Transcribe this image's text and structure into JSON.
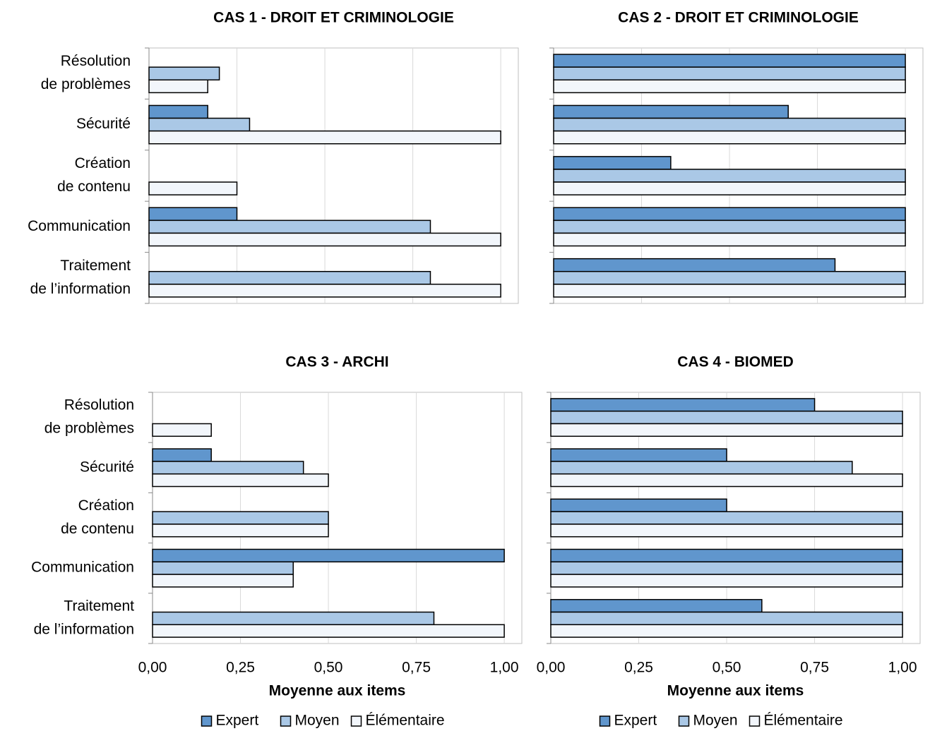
{
  "chart_data": [
    {
      "type": "bar",
      "orientation": "horizontal",
      "title": "CAS 1 - DROIT ET CRIMINOLOGIE",
      "categories": [
        [
          "Résolution",
          "de problèmes"
        ],
        [
          "Sécurité"
        ],
        [
          "Création",
          "de contenu"
        ],
        [
          "Communication"
        ],
        [
          "Traitement",
          "de l’information"
        ]
      ],
      "series": [
        {
          "color": "#6096cd",
          "values": [
            0,
            0.167,
            0,
            0.25,
            0
          ]
        },
        {
          "color": "#aac8e6",
          "values": [
            0.2,
            0.286,
            0,
            0.8,
            0.8
          ]
        },
        {
          "color": "#f2f6fb",
          "values": [
            0.167,
            1,
            0.25,
            1,
            1
          ]
        }
      ],
      "xlim": [
        0,
        1.05
      ],
      "xticks": [
        0,
        0.25,
        0.5,
        0.75,
        1
      ],
      "grid": true
    },
    {
      "type": "bar",
      "orientation": "horizontal",
      "title": "CAS 2 - DROIT ET CRIMINOLOGIE",
      "categories": [
        [],
        [],
        [],
        [],
        []
      ],
      "series": [
        {
          "color": "#6096cd",
          "values": [
            1,
            0.667,
            0.333,
            1,
            0.8
          ]
        },
        {
          "color": "#aac8e6",
          "values": [
            1,
            1,
            1,
            1,
            1
          ]
        },
        {
          "color": "#f2f6fb",
          "values": [
            1,
            1,
            1,
            1,
            1
          ]
        }
      ],
      "xlim": [
        0,
        1.05
      ],
      "xticks": [
        0,
        0.25,
        0.5,
        0.75,
        1
      ],
      "grid": true
    },
    {
      "type": "bar",
      "orientation": "horizontal",
      "title": "CAS 3 - ARCHI",
      "categories": [
        [
          "Résolution",
          "de problèmes"
        ],
        [
          "Sécurité"
        ],
        [
          "Création",
          "de contenu"
        ],
        [
          "Communication"
        ],
        [
          "Traitement",
          "de l’information"
        ]
      ],
      "series": [
        {
          "name": "Expert",
          "color": "#6096cd",
          "values": [
            0,
            0.167,
            0,
            1,
            0
          ]
        },
        {
          "name": "Moyen",
          "color": "#aac8e6",
          "values": [
            0,
            0.429,
            0.5,
            0.4,
            0.8
          ]
        },
        {
          "name": "Élémentaire",
          "color": "#f2f6fb",
          "values": [
            0.167,
            0.5,
            0.5,
            0.4,
            1
          ]
        }
      ],
      "xlim": [
        0,
        1.05
      ],
      "xticks": [
        {
          "value": 0,
          "label": "0,00"
        },
        {
          "value": 0.25,
          "label": "0,25"
        },
        {
          "value": 0.5,
          "label": "0,50"
        },
        {
          "value": 0.75,
          "label": "0,75"
        },
        {
          "value": 1,
          "label": "1,00"
        }
      ],
      "xlabel": "Moyenne aux items",
      "grid": true,
      "legend": "bottom"
    },
    {
      "type": "bar",
      "orientation": "horizontal",
      "title": "CAS 4 - BIOMED",
      "categories": [
        [],
        [],
        [],
        [],
        []
      ],
      "series": [
        {
          "name": "Expert",
          "color": "#6096cd",
          "values": [
            0.75,
            0.5,
            0.5,
            1,
            0.6
          ]
        },
        {
          "name": "Moyen",
          "color": "#aac8e6",
          "values": [
            1,
            0.857,
            1,
            1,
            1
          ]
        },
        {
          "name": "Élémentaire",
          "color": "#f2f6fb",
          "values": [
            1,
            1,
            1,
            1,
            1
          ]
        }
      ],
      "xlim": [
        0,
        1.05
      ],
      "xticks": [
        {
          "value": 0,
          "label": "0,00"
        },
        {
          "value": 0.25,
          "label": "0,25"
        },
        {
          "value": 0.5,
          "label": "0,50"
        },
        {
          "value": 0.75,
          "label": "0,75"
        },
        {
          "value": 1,
          "label": "1,00"
        }
      ],
      "xlabel": "Moyenne aux items",
      "grid": true,
      "legend": "bottom"
    }
  ]
}
